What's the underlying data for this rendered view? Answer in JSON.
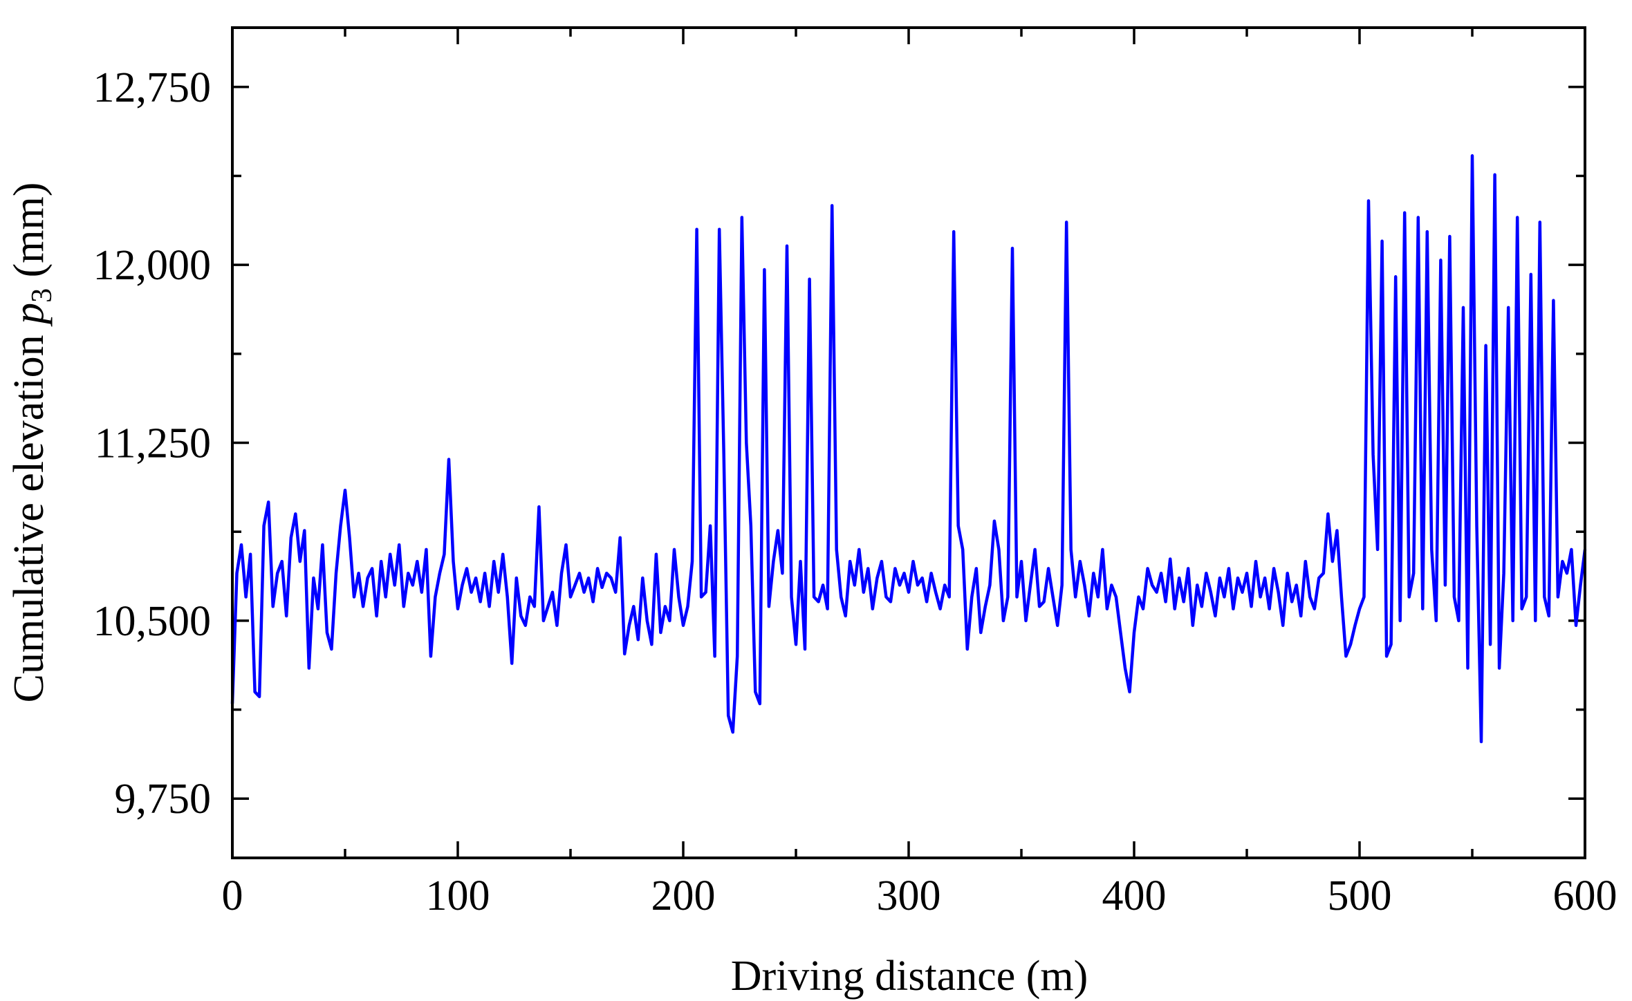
{
  "chart_data": {
    "type": "line",
    "x_label": "Driving distance (m)",
    "y_label": [
      "Cumulative elevation",
      "p",
      "3",
      "(mm)"
    ],
    "xlim": [
      0,
      600
    ],
    "xticks": [
      0,
      100,
      200,
      300,
      400,
      500,
      600
    ],
    "xticks_minor": [
      50,
      150,
      250,
      350,
      450,
      550
    ],
    "ylim": [
      9500,
      13000
    ],
    "yticks": [
      {
        "value": 9750,
        "label": "9,750"
      },
      {
        "value": 10500,
        "label": "10,500"
      },
      {
        "value": 11250,
        "label": "11,250"
      },
      {
        "value": 12000,
        "label": "12,000"
      },
      {
        "value": 12750,
        "label": "12,750"
      }
    ],
    "yticks_minor": [
      10125,
      10875,
      11625,
      12375
    ],
    "grid": false,
    "series": [
      {
        "color": "#0000ff",
        "x": [
          0,
          2,
          4,
          6,
          8,
          10,
          12,
          14,
          16,
          18,
          20,
          22,
          24,
          26,
          28,
          30,
          32,
          34,
          36,
          38,
          40,
          42,
          44,
          46,
          48,
          50,
          52,
          54,
          56,
          58,
          60,
          62,
          64,
          66,
          68,
          70,
          72,
          74,
          76,
          78,
          80,
          82,
          84,
          86,
          88,
          90,
          92,
          94,
          96,
          98,
          100,
          102,
          104,
          106,
          108,
          110,
          112,
          114,
          116,
          118,
          120,
          122,
          124,
          126,
          128,
          130,
          132,
          134,
          136,
          138,
          140,
          142,
          144,
          146,
          148,
          150,
          152,
          154,
          156,
          158,
          160,
          162,
          164,
          166,
          168,
          170,
          172,
          174,
          176,
          178,
          180,
          182,
          184,
          186,
          188,
          190,
          192,
          194,
          196,
          198,
          200,
          202,
          204,
          206,
          208,
          210,
          212,
          214,
          216,
          218,
          220,
          222,
          224,
          226,
          228,
          230,
          232,
          234,
          236,
          238,
          240,
          242,
          244,
          246,
          248,
          250,
          252,
          254,
          256,
          258,
          260,
          262,
          264,
          266,
          268,
          270,
          272,
          274,
          276,
          278,
          280,
          282,
          284,
          286,
          288,
          290,
          292,
          294,
          296,
          298,
          300,
          302,
          304,
          306,
          308,
          310,
          312,
          314,
          316,
          318,
          320,
          322,
          324,
          326,
          328,
          330,
          332,
          334,
          336,
          338,
          340,
          342,
          344,
          346,
          348,
          350,
          352,
          354,
          356,
          358,
          360,
          362,
          364,
          366,
          368,
          370,
          372,
          374,
          376,
          378,
          380,
          382,
          384,
          386,
          388,
          390,
          392,
          394,
          396,
          398,
          400,
          402,
          404,
          406,
          408,
          410,
          412,
          414,
          416,
          418,
          420,
          422,
          424,
          426,
          428,
          430,
          432,
          434,
          436,
          438,
          440,
          442,
          444,
          446,
          448,
          450,
          452,
          454,
          456,
          458,
          460,
          462,
          464,
          466,
          468,
          470,
          472,
          474,
          476,
          478,
          480,
          482,
          484,
          486,
          488,
          490,
          492,
          494,
          496,
          498,
          500,
          502,
          504,
          506,
          508,
          510,
          512,
          514,
          516,
          518,
          520,
          522,
          524,
          526,
          528,
          530,
          532,
          534,
          536,
          538,
          540,
          542,
          544,
          546,
          548,
          550,
          552,
          554,
          556,
          558,
          560,
          562,
          564,
          566,
          568,
          570,
          572,
          574,
          576,
          578,
          580,
          582,
          584,
          586,
          588,
          590,
          592,
          594,
          596,
          598,
          600
        ],
        "values": [
          10150,
          10700,
          10820,
          10600,
          10780,
          10200,
          10180,
          10900,
          11000,
          10560,
          10700,
          10750,
          10520,
          10850,
          10950,
          10750,
          10880,
          10300,
          10680,
          10550,
          10820,
          10450,
          10380,
          10700,
          10900,
          11050,
          10850,
          10600,
          10700,
          10560,
          10680,
          10720,
          10520,
          10750,
          10600,
          10780,
          10650,
          10820,
          10560,
          10700,
          10650,
          10750,
          10620,
          10800,
          10350,
          10600,
          10700,
          10780,
          11180,
          10750,
          10550,
          10650,
          10720,
          10620,
          10680,
          10580,
          10700,
          10560,
          10750,
          10620,
          10780,
          10600,
          10320,
          10680,
          10520,
          10480,
          10600,
          10560,
          10980,
          10500,
          10560,
          10620,
          10480,
          10700,
          10820,
          10600,
          10650,
          10700,
          10620,
          10680,
          10580,
          10720,
          10640,
          10700,
          10680,
          10620,
          10850,
          10360,
          10480,
          10560,
          10420,
          10680,
          10500,
          10400,
          10780,
          10450,
          10560,
          10500,
          10800,
          10600,
          10480,
          10560,
          10750,
          12150,
          10600,
          10620,
          10900,
          10350,
          12150,
          11200,
          10100,
          10030,
          10350,
          12200,
          11250,
          10900,
          10200,
          10150,
          11980,
          10560,
          10750,
          10880,
          10700,
          12080,
          10600,
          10400,
          10750,
          10380,
          11940,
          10600,
          10580,
          10650,
          10550,
          12250,
          10800,
          10600,
          10520,
          10750,
          10650,
          10800,
          10620,
          10720,
          10550,
          10680,
          10750,
          10600,
          10580,
          10720,
          10650,
          10700,
          10620,
          10750,
          10650,
          10680,
          10580,
          10700,
          10620,
          10550,
          10650,
          10600,
          12140,
          10900,
          10800,
          10380,
          10600,
          10720,
          10450,
          10560,
          10650,
          10920,
          10800,
          10500,
          10600,
          12070,
          10600,
          10750,
          10500,
          10650,
          10800,
          10560,
          10580,
          10720,
          10600,
          10480,
          10650,
          12180,
          10800,
          10600,
          10750,
          10650,
          10520,
          10700,
          10600,
          10800,
          10550,
          10650,
          10600,
          10450,
          10300,
          10200,
          10450,
          10600,
          10550,
          10720,
          10650,
          10620,
          10700,
          10580,
          10760,
          10550,
          10680,
          10580,
          10720,
          10480,
          10650,
          10560,
          10700,
          10620,
          10520,
          10680,
          10600,
          10720,
          10550,
          10680,
          10620,
          10700,
          10560,
          10750,
          10600,
          10680,
          10550,
          10720,
          10620,
          10480,
          10700,
          10580,
          10650,
          10520,
          10750,
          10600,
          10550,
          10680,
          10700,
          10950,
          10750,
          10880,
          10600,
          10350,
          10400,
          10480,
          10550,
          10600,
          12270,
          11200,
          10800,
          12100,
          10350,
          10400,
          11950,
          10500,
          12220,
          10600,
          10700,
          12200,
          10550,
          12140,
          10800,
          10500,
          12020,
          10650,
          12120,
          10600,
          10500,
          11820,
          10300,
          12460,
          10900,
          9990,
          11660,
          10400,
          12380,
          10300,
          10700,
          11820,
          10500,
          12200,
          10550,
          10600,
          11960,
          10500,
          12180,
          10600,
          10520,
          11850,
          10600,
          10750,
          10700,
          10800,
          10480,
          10650,
          10800
        ]
      }
    ]
  }
}
